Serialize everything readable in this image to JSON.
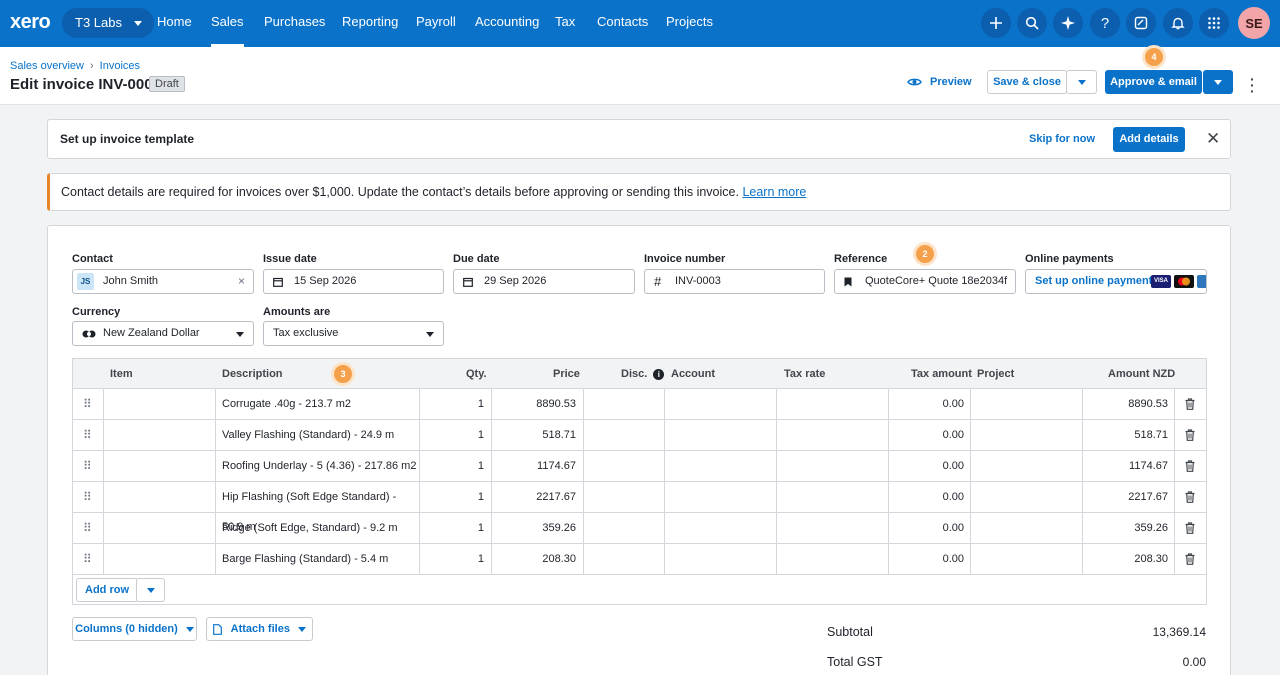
{
  "nav": {
    "logo": "xero",
    "org": "T3 Labs",
    "items": [
      "Home",
      "Sales",
      "Purchases",
      "Reporting",
      "Payroll",
      "Accounting",
      "Tax",
      "Contacts",
      "Projects"
    ],
    "active": "Sales",
    "icons": [
      "plus-icon",
      "search-icon",
      "sparkle-icon",
      "help-icon",
      "notes-icon",
      "bell-icon",
      "apps-grid-icon"
    ],
    "avatar": "SE"
  },
  "header": {
    "breadcrumb": [
      "Sales overview",
      "Invoices"
    ],
    "title": "Edit invoice INV-0003",
    "status": "Draft",
    "preview": "Preview",
    "save_close": "Save & close",
    "approve": "Approve & email",
    "step4": "4"
  },
  "template_banner": {
    "title": "Set up invoice template",
    "skip": "Skip for now",
    "add": "Add details"
  },
  "warning": {
    "message": "Contact details are required for invoices over $1,000. Update the contact’s details before approving or sending this invoice.",
    "link": "Learn more"
  },
  "form": {
    "contact_label": "Contact",
    "contact_initials": "JS",
    "contact_value": "John Smith",
    "issue_label": "Issue date",
    "issue_value": "15 Sep 2026",
    "due_label": "Due date",
    "due_value": "29 Sep 2026",
    "number_label": "Invoice number",
    "number_value": "INV-0003",
    "reference_label": "Reference",
    "reference_value": "QuoteCore+ Quote 18e2034f",
    "step2": "2",
    "online_label": "Online payments",
    "online_link": "Set up online payments",
    "currency_label": "Currency",
    "currency_value": "New Zealand Dollar",
    "amounts_label": "Amounts are",
    "amounts_value": "Tax exclusive"
  },
  "table": {
    "headers": {
      "item": "Item",
      "description": "Description",
      "qty": "Qty.",
      "price": "Price",
      "disc": "Disc.",
      "account": "Account",
      "tax_rate": "Tax rate",
      "tax_amount": "Tax amount",
      "project": "Project",
      "amount": "Amount NZD"
    },
    "step3": "3",
    "rows": [
      {
        "description": "Corrugate .40g - 213.7 m2",
        "qty": "1",
        "price": "8890.53",
        "tax_amount": "0.00",
        "amount": "8890.53"
      },
      {
        "description": "Valley Flashing (Standard) - 24.9 m",
        "qty": "1",
        "price": "518.71",
        "tax_amount": "0.00",
        "amount": "518.71"
      },
      {
        "description": "Roofing Underlay - 5 (4.36) - 217.86 m2",
        "qty": "1",
        "price": "1174.67",
        "tax_amount": "0.00",
        "amount": "1174.67"
      },
      {
        "description": "Hip Flashing (Soft Edge Standard) - 50.9 m",
        "qty": "1",
        "price": "2217.67",
        "tax_amount": "0.00",
        "amount": "2217.67"
      },
      {
        "description": "Ridge (Soft Edge, Standard) - 9.2 m",
        "qty": "1",
        "price": "359.26",
        "tax_amount": "0.00",
        "amount": "359.26"
      },
      {
        "description": "Barge Flashing (Standard) - 5.4 m",
        "qty": "1",
        "price": "208.30",
        "tax_amount": "0.00",
        "amount": "208.30"
      }
    ],
    "add_row": "Add row"
  },
  "footer": {
    "columns": "Columns (0 hidden)",
    "attach": "Attach files",
    "subtotal_label": "Subtotal",
    "subtotal_value": "13,369.14",
    "gst_label": "Total GST",
    "gst_value": "0.00"
  }
}
